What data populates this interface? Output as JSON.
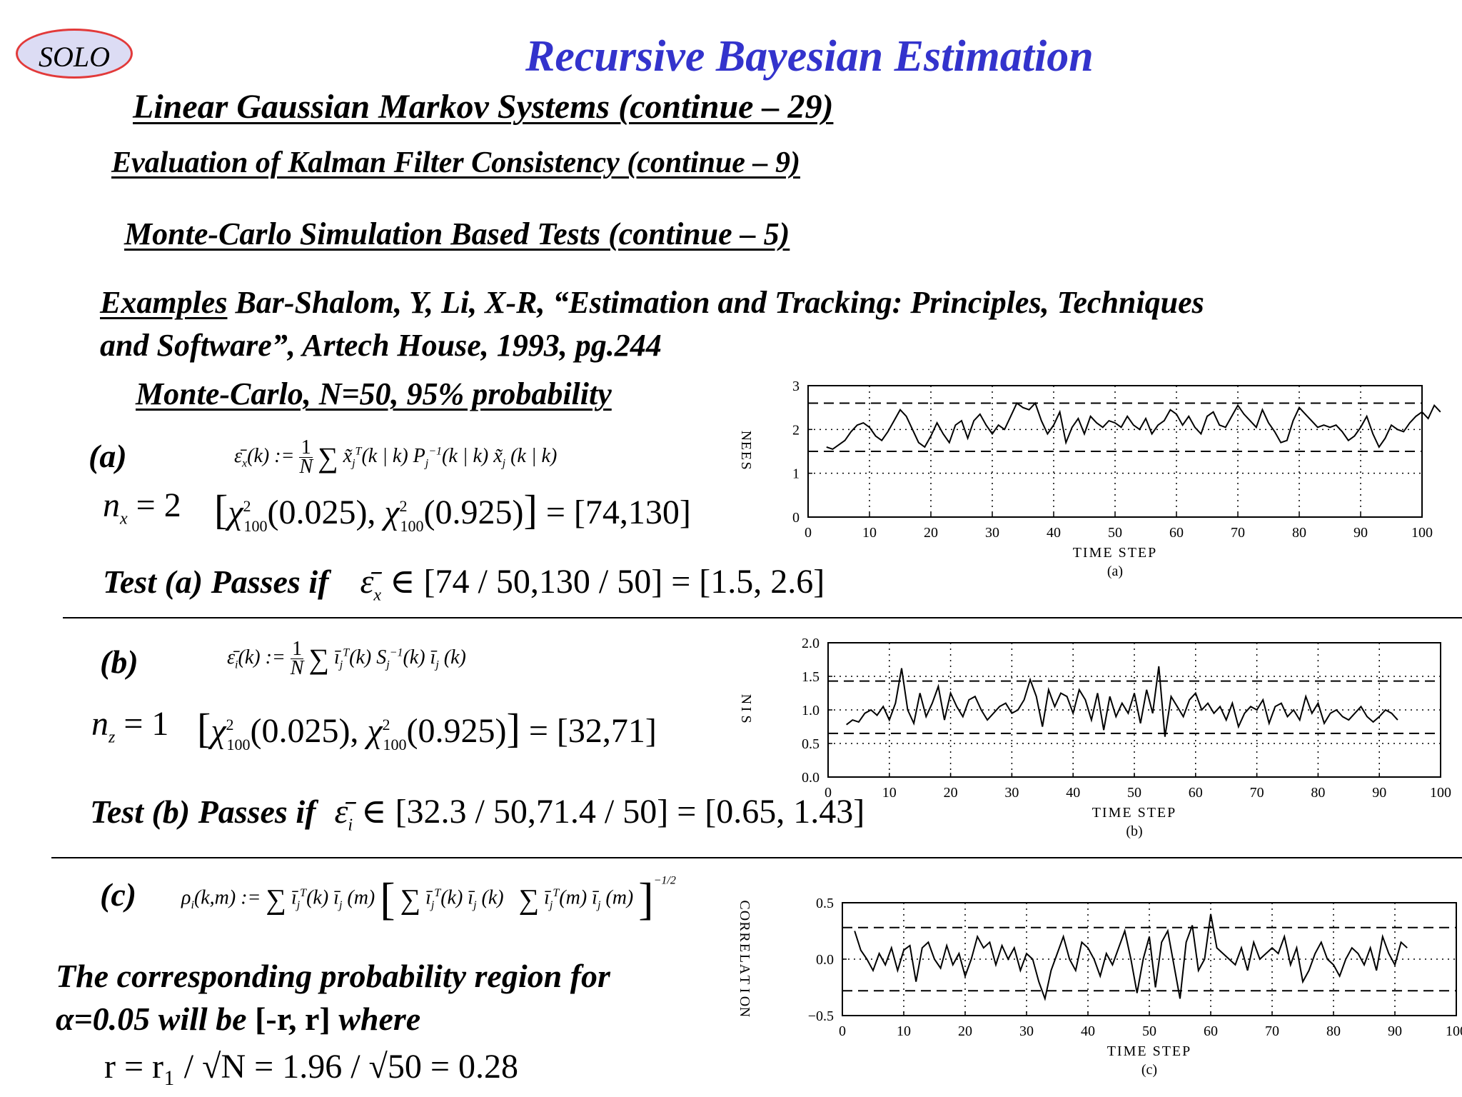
{
  "badge": "SOLO",
  "title": "Recursive Bayesian Estimation",
  "heading1": "Linear Gaussian Markov Systems (continue – 29)",
  "heading2": "Evaluation of Kalman Filter Consistency (continue – 9)",
  "heading3": "Monte-Carlo Simulation Based Tests (continue – 5)",
  "reference": {
    "examples_label": "Examples",
    "line1": " Bar-Shalom, Y, Li, X-R, “Estimation and Tracking: Principles, Techniques",
    "line2": "and Software”, Artech House, 1993, pg.244"
  },
  "monte_carlo": "Monte-Carlo, N=50, 95% probability",
  "section_a": {
    "label": "(a)",
    "nx": "n",
    "nx_sub": "x",
    "nx_eq": " = 2",
    "interval": "= [74,130]",
    "test_label": "Test (a) Passes if",
    "test_interval": "∈ [74 / 50,130 / 50] = [1.5, 2.6]"
  },
  "section_b": {
    "label": "(b)",
    "nz": "n",
    "nz_sub": "z",
    "nz_eq": " = 1",
    "interval": "= [32,71]",
    "test_label": "Test (b) Passes if",
    "test_interval": "∈ [32.3 / 50,71.4 / 50] = [0.65, 1.43]"
  },
  "section_c": {
    "label": "(c)",
    "text1": "The corresponding probability region for",
    "text2a": "α=0.05 will be ",
    "text2b": "[-r, r]",
    "text2c": " where",
    "formula": "r = r₁ / √N = 1.96 / √50 = 0.28"
  },
  "chart_data": [
    {
      "type": "line",
      "caption": "(a)",
      "xlabel": "TIME STEP",
      "ylabel": "NEES",
      "xlim": [
        0,
        100
      ],
      "ylim": [
        0,
        3
      ],
      "xticks": [
        0,
        10,
        20,
        30,
        40,
        50,
        60,
        70,
        80,
        90,
        100
      ],
      "yticks": [
        "0",
        "1",
        "2",
        "3"
      ],
      "bounds": [
        1.5,
        2.6
      ],
      "x_start": 3,
      "values": [
        1.6,
        1.55,
        1.65,
        1.75,
        1.95,
        2.1,
        2.15,
        2.05,
        1.85,
        1.75,
        1.95,
        2.2,
        2.45,
        2.3,
        2.0,
        1.7,
        1.6,
        1.85,
        2.15,
        1.9,
        1.7,
        2.1,
        2.2,
        1.8,
        2.2,
        2.35,
        2.1,
        1.9,
        2.1,
        2.0,
        2.3,
        2.6,
        2.5,
        2.45,
        2.6,
        2.2,
        1.9,
        2.1,
        2.4,
        1.7,
        2.05,
        2.25,
        1.9,
        2.3,
        2.15,
        2.05,
        2.2,
        2.15,
        2.05,
        2.3,
        2.1,
        2.0,
        2.25,
        1.9,
        2.1,
        2.2,
        2.45,
        2.35,
        2.1,
        2.3,
        2.05,
        1.9,
        2.3,
        2.4,
        2.1,
        2.05,
        2.3,
        2.55,
        2.35,
        2.2,
        2.05,
        2.45,
        2.15,
        1.95,
        1.7,
        1.75,
        2.2,
        2.5,
        2.35,
        2.2,
        2.05,
        2.1,
        2.05,
        2.1,
        1.95,
        1.75,
        1.85,
        2.05,
        2.3,
        1.9,
        1.6,
        1.8,
        2.1,
        2.0,
        1.95,
        2.15,
        2.3,
        2.4,
        2.25,
        2.55,
        2.4
      ]
    },
    {
      "type": "line",
      "caption": "(b)",
      "xlabel": "TIME STEP",
      "ylabel": "NIS",
      "xlim": [
        0,
        100
      ],
      "ylim": [
        0,
        2
      ],
      "xticks": [
        0,
        10,
        20,
        30,
        40,
        50,
        60,
        70,
        80,
        90,
        100
      ],
      "yticks": [
        "0.0",
        "0.5",
        "1.0",
        "1.5",
        "2.0"
      ],
      "bounds": [
        0.65,
        1.43
      ],
      "x_start": 3,
      "values": [
        0.78,
        0.85,
        0.82,
        0.95,
        1.0,
        0.92,
        1.05,
        0.85,
        1.1,
        1.62,
        1.0,
        0.8,
        1.25,
        0.9,
        1.1,
        1.35,
        0.85,
        1.25,
        1.05,
        0.9,
        1.15,
        1.2,
        1.0,
        0.85,
        0.95,
        1.05,
        1.1,
        0.95,
        1.0,
        1.15,
        1.45,
        1.2,
        0.75,
        1.3,
        1.05,
        1.25,
        1.2,
        0.95,
        1.3,
        1.15,
        0.85,
        1.25,
        0.7,
        1.2,
        0.9,
        1.1,
        0.95,
        1.25,
        0.8,
        1.3,
        0.95,
        1.65,
        0.6,
        1.2,
        1.05,
        0.9,
        1.15,
        1.25,
        1.0,
        1.1,
        0.95,
        1.05,
        0.85,
        1.1,
        0.75,
        0.95,
        1.05,
        1.0,
        1.15,
        0.8,
        1.05,
        1.1,
        0.9,
        1.0,
        0.85,
        1.2,
        0.95,
        1.1,
        0.8,
        0.95,
        1.0,
        0.9,
        0.85,
        0.95,
        1.05,
        0.9,
        0.82,
        0.9,
        1.0,
        0.95,
        0.85
      ]
    },
    {
      "type": "line",
      "caption": "(c)",
      "xlabel": "TIME STEP",
      "ylabel": "CORRELATION",
      "xlim": [
        0,
        100
      ],
      "ylim": [
        -0.5,
        0.5
      ],
      "xticks": [
        0,
        10,
        20,
        30,
        40,
        50,
        60,
        70,
        80,
        90,
        100
      ],
      "yticks": [
        "−0.5",
        "0.0",
        "0.5"
      ],
      "bounds": [
        -0.28,
        0.28
      ],
      "x_start": 2,
      "values": [
        0.25,
        0.08,
        0.0,
        -0.1,
        0.05,
        -0.05,
        0.1,
        -0.1,
        0.08,
        0.12,
        -0.2,
        0.1,
        0.15,
        0.0,
        -0.08,
        0.12,
        -0.05,
        0.05,
        -0.15,
        0.0,
        0.2,
        0.1,
        0.15,
        -0.05,
        0.12,
        0.0,
        0.1,
        -0.1,
        0.05,
        0.0,
        -0.2,
        -0.35,
        -0.1,
        0.05,
        0.2,
        0.0,
        -0.1,
        0.15,
        0.1,
        0.0,
        -0.15,
        0.05,
        -0.05,
        0.1,
        0.25,
        0.0,
        -0.3,
        0.0,
        0.2,
        -0.25,
        0.15,
        0.25,
        -0.05,
        -0.35,
        0.15,
        0.3,
        -0.1,
        0.0,
        0.4,
        0.1,
        0.05,
        0.0,
        -0.05,
        0.1,
        -0.1,
        0.15,
        0.0,
        0.05,
        0.1,
        0.05,
        0.2,
        -0.05,
        0.1,
        -0.2,
        -0.1,
        0.05,
        0.15,
        0.0,
        -0.05,
        -0.15,
        0.0,
        0.1,
        0.05,
        -0.05,
        0.1,
        -0.1,
        0.2,
        0.05,
        -0.05,
        0.15,
        0.1
      ]
    }
  ]
}
